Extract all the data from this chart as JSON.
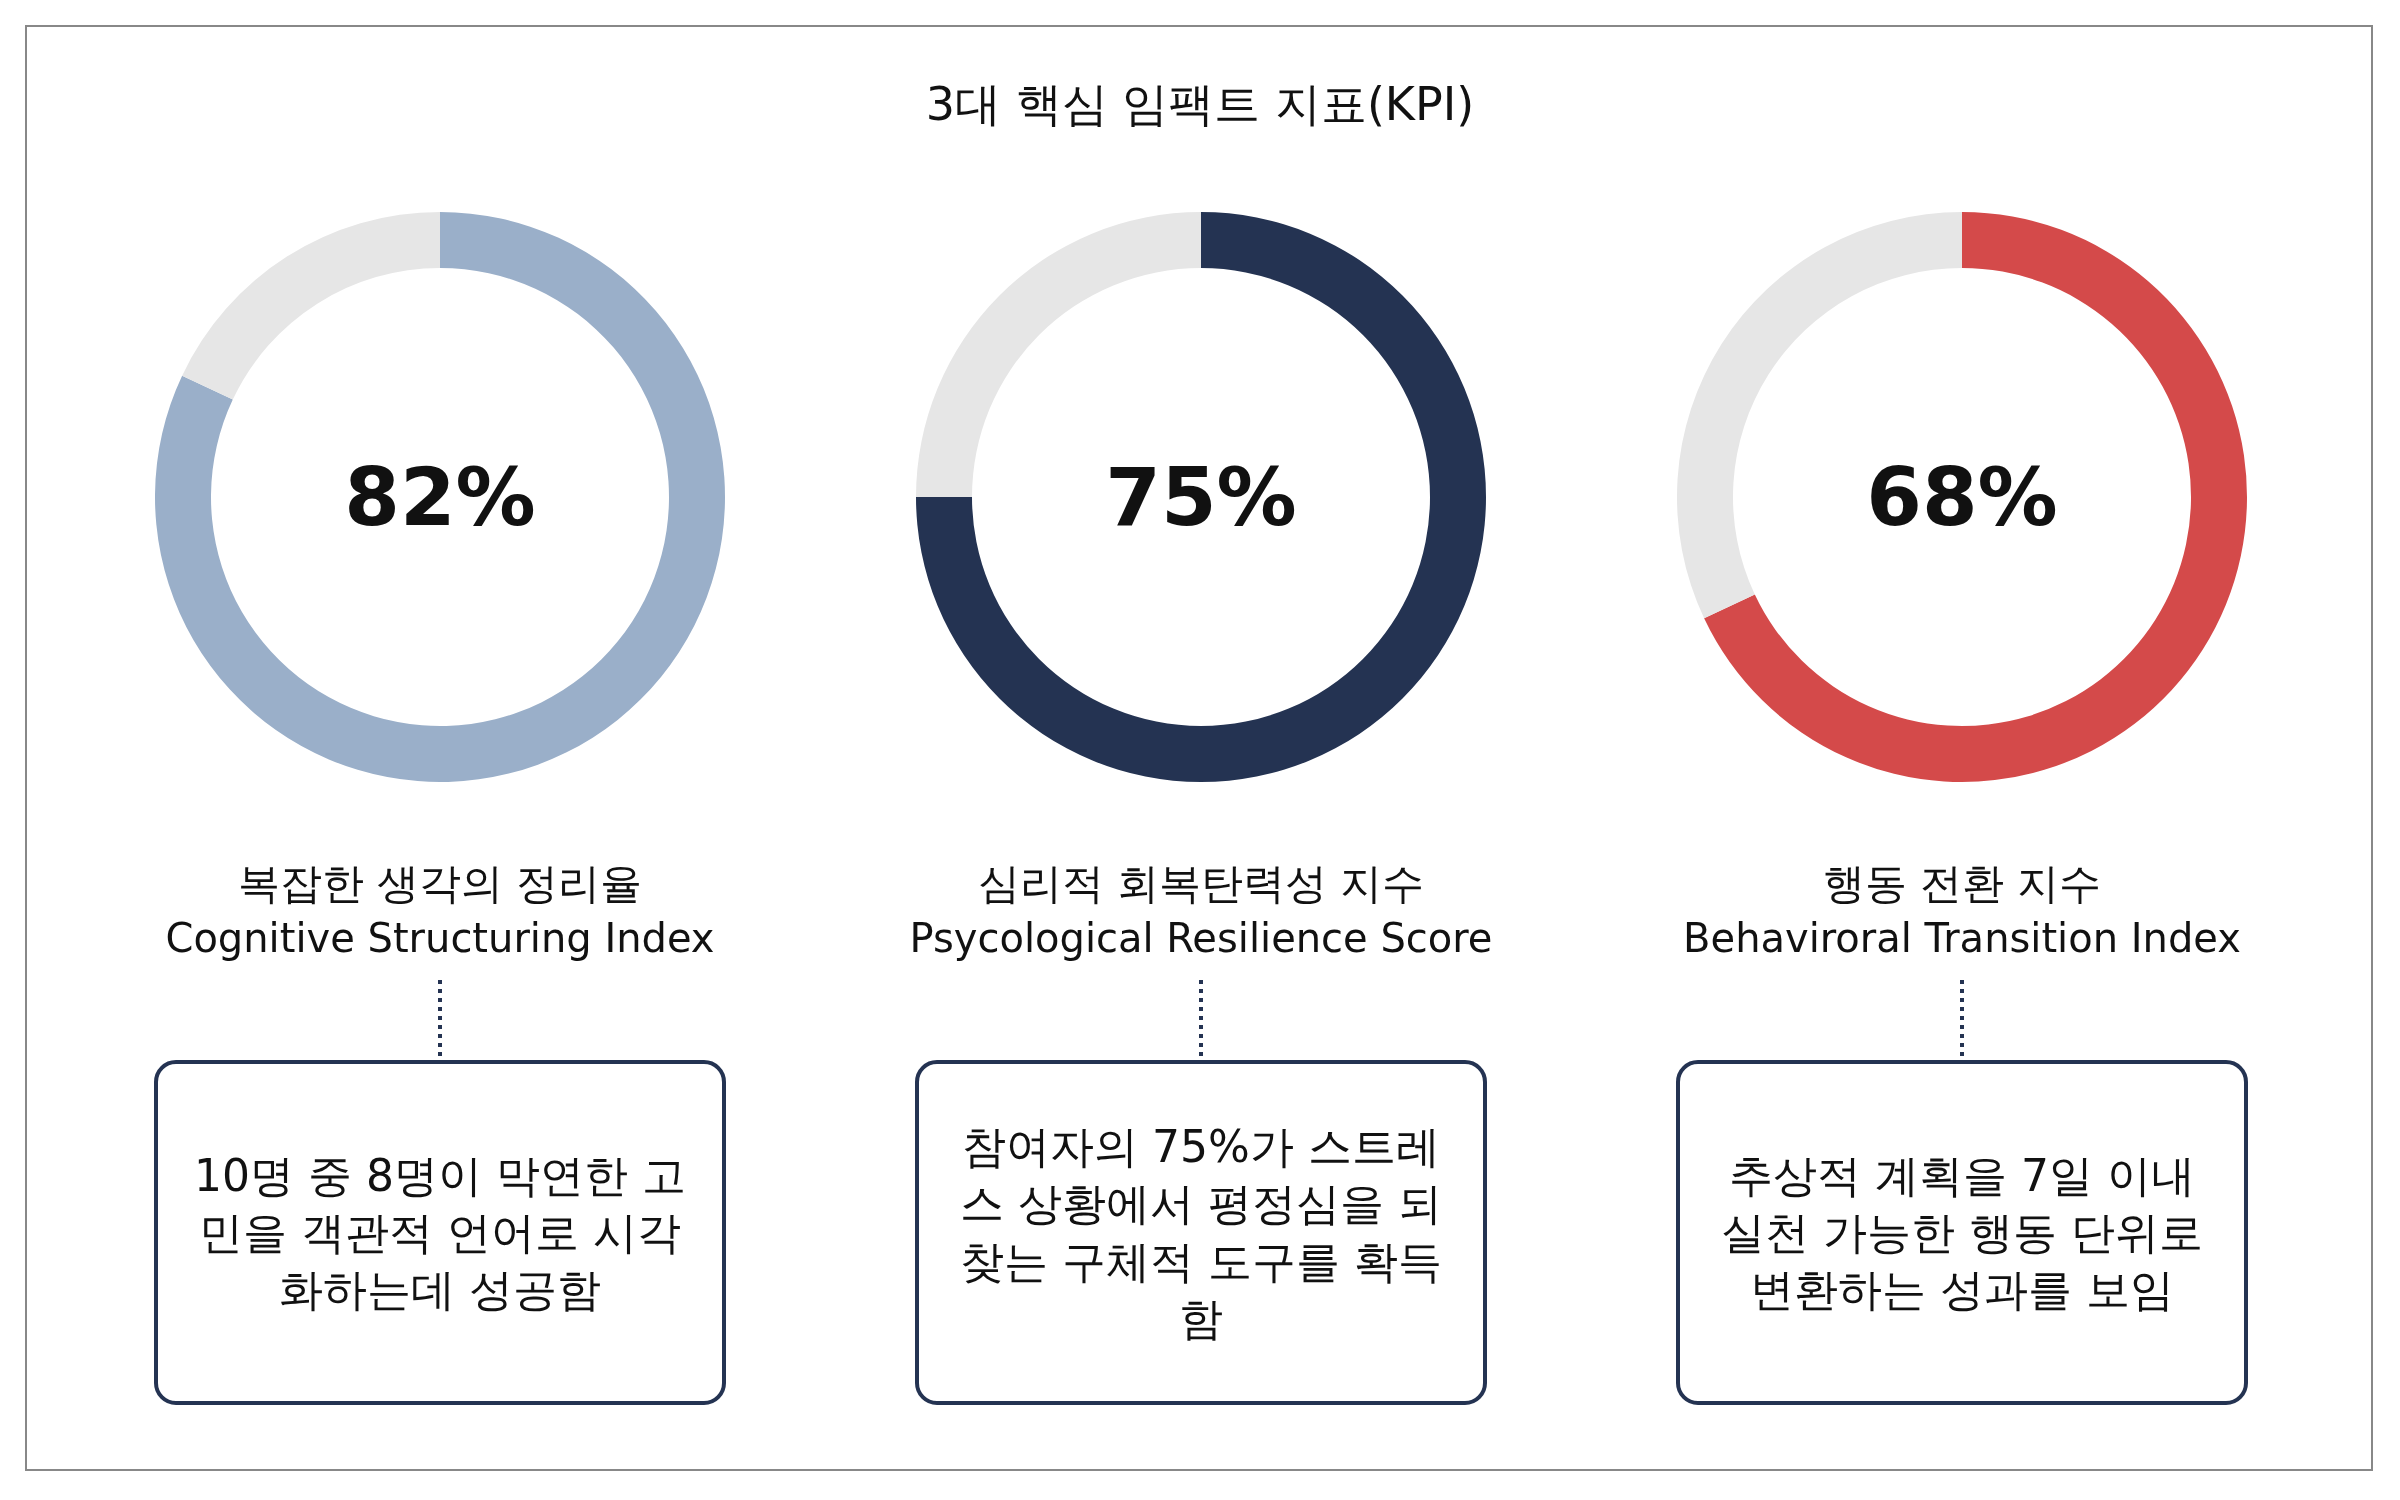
{
  "chart_data": [
    {
      "type": "other",
      "title": "3대 핵심 임팩트 지표(KPI)"
    },
    {
      "type": "donut",
      "title": "복잡한 생각의 정리율",
      "subtitle": "Cognitive Structuring Index",
      "categories": [
        null,
        null
      ],
      "values": [
        82,
        18
      ],
      "colors": [
        "#9aafc9",
        "#e6e6e6"
      ],
      "value_labels": [
        "82%",
        null
      ],
      "annotations": [
        "10명 중 8명이 막연한 고민을 객관적 언어로 시각화하는데 성공함"
      ]
    },
    {
      "type": "donut",
      "title": "심리적 회복탄력성 지수",
      "subtitle": "Psycological Resilience Score",
      "categories": [
        null,
        null
      ],
      "values": [
        75,
        25
      ],
      "colors": [
        "#243352",
        "#e6e6e6"
      ],
      "value_labels": [
        "75%",
        null
      ],
      "annotations": [
        "참여자의 75%가 스트레스 상황에서 평정심을 되찾는 구체적 도구를 확득함"
      ]
    },
    {
      "type": "donut",
      "title": "행동 전환 지수",
      "subtitle": "Behaviroral Transition Index",
      "categories": [
        null,
        null
      ],
      "values": [
        68,
        32
      ],
      "colors": [
        "#d44a4a",
        "#e6e6e6"
      ],
      "value_labels": [
        "68%",
        null
      ],
      "annotations": [
        "추상적 계획을 7일 이내 실천 가능한 행동 단위로 변환하는 성과를 보임"
      ]
    }
  ]
}
